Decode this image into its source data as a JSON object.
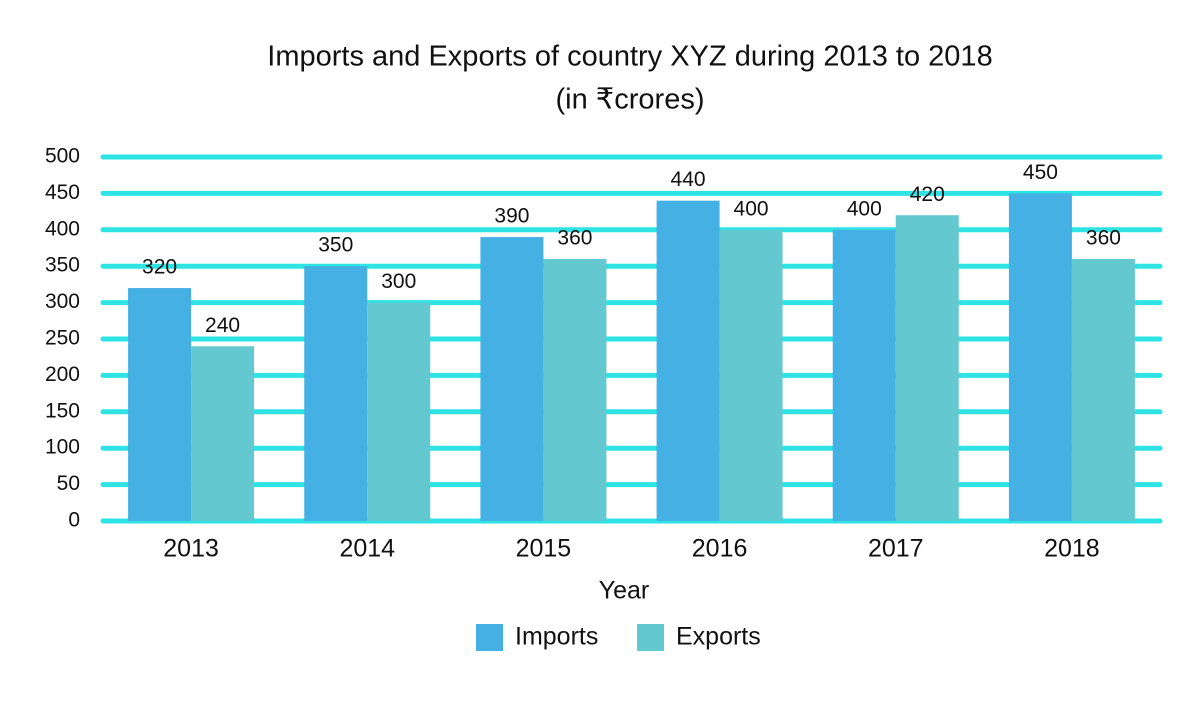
{
  "chart_data": {
    "type": "bar",
    "title": "Imports and Exports of country XYZ during 2013 to 2018",
    "subtitle": "(in ₹crores)",
    "x_label": "Year",
    "categories": [
      "2013",
      "2014",
      "2015",
      "2016",
      "2017",
      "2018"
    ],
    "series": [
      {
        "name": "Imports",
        "color": "#45b0e4",
        "values": [
          320,
          350,
          390,
          440,
          400,
          450
        ]
      },
      {
        "name": "Exports",
        "color": "#63c8cf",
        "values": [
          240,
          300,
          360,
          400,
          420,
          360
        ]
      }
    ],
    "ylim": [
      0,
      500
    ],
    "yticks": [
      0,
      50,
      100,
      150,
      200,
      250,
      300,
      350,
      400,
      450,
      500
    ],
    "grid": true,
    "grid_color": "#2ee3e3",
    "legend": "bottom"
  }
}
